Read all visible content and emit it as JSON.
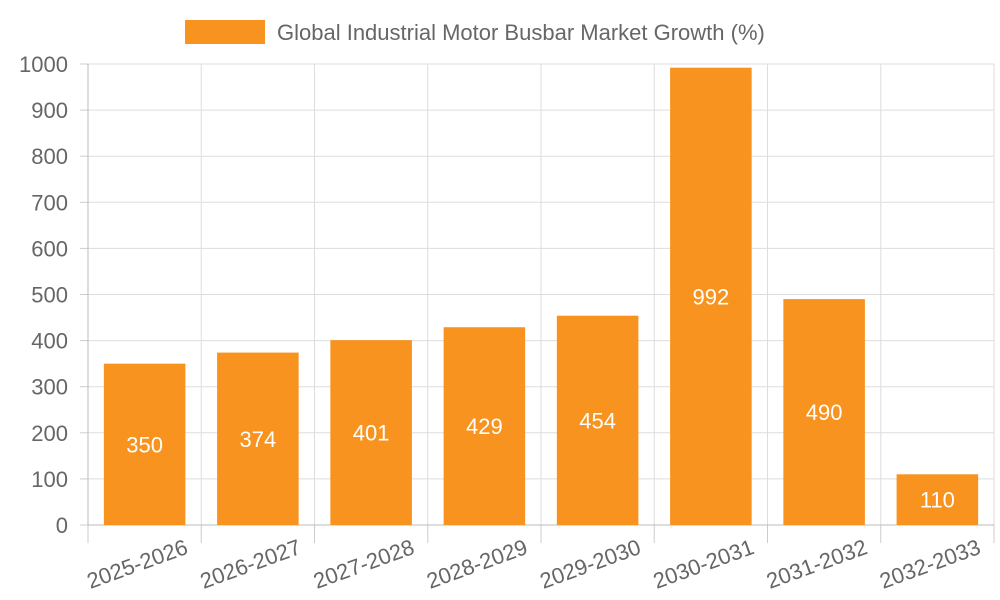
{
  "chart_data": {
    "type": "bar",
    "title": "",
    "xlabel": "",
    "ylabel": "",
    "categories": [
      "2025-2026",
      "2026-2027",
      "2027-2028",
      "2028-2029",
      "2029-2030",
      "2030-2031",
      "2031-2032",
      "2032-2033"
    ],
    "series": [
      {
        "name": "Global Industrial Motor Busbar Market Growth (%)",
        "color": "#F7931E",
        "values": [
          350,
          374,
          401,
          429,
          454,
          992,
          490,
          110
        ]
      }
    ],
    "ylim": [
      0,
      1000
    ],
    "yticks": [
      0,
      100,
      200,
      300,
      400,
      500,
      600,
      700,
      800,
      900,
      1000
    ],
    "grid": true,
    "legend_position": "top-center",
    "data_labels": true,
    "x_tick_rotation": "angled"
  }
}
